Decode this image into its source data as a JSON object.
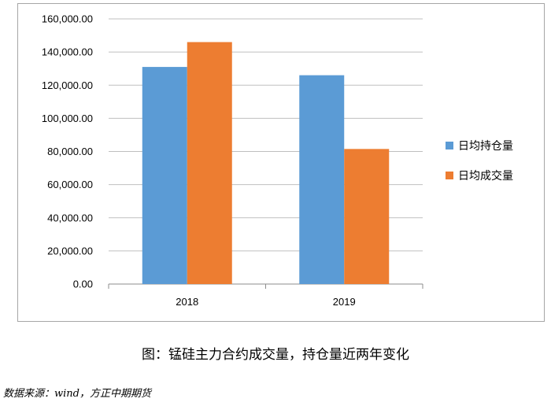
{
  "chart_data": {
    "type": "bar",
    "categories": [
      "2018",
      "2019"
    ],
    "series": [
      {
        "name": "日均持仓量",
        "color": "#5b9bd5",
        "values": [
          131000,
          126000
        ]
      },
      {
        "name": "日均成交量",
        "color": "#ed7d31",
        "values": [
          146000,
          81500
        ]
      }
    ],
    "ylim": [
      0,
      160000
    ],
    "yticks": [
      "0.00",
      "20,000.00",
      "40,000.00",
      "60,000.00",
      "80,000.00",
      "100,000.00",
      "120,000.00",
      "140,000.00",
      "160,000.00"
    ],
    "grid": true,
    "legend": "right"
  },
  "caption": "图：锰硅主力合约成交量，持仓量近两年变化",
  "source": "数据来源：wind，方正中期期货"
}
